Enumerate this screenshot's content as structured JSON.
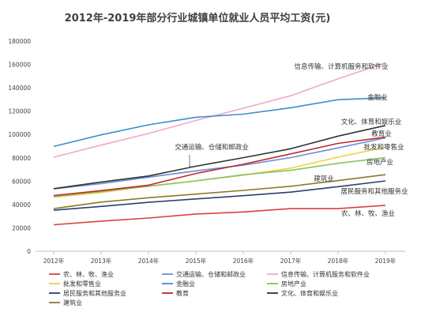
{
  "chart_data": {
    "type": "line",
    "title": "2012年-2019年部分行业城镇单位就业人员平均工资(元)",
    "xlabel": "",
    "ylabel": "",
    "categories": [
      "2012年",
      "2013年",
      "2014年",
      "2015年",
      "2016年",
      "2017年",
      "2018年",
      "2019年"
    ],
    "ylim": [
      0,
      180000
    ],
    "yticks": [
      "0",
      "20000",
      "40000",
      "60000",
      "80000",
      "100000",
      "120000",
      "140000",
      "160000",
      "180000"
    ],
    "grid": false,
    "legend_position": "bottom",
    "series": [
      {
        "name": "农、林、牧、渔业",
        "color": "#d94040",
        "values": [
          22700,
          25800,
          28400,
          31900,
          33600,
          36500,
          36500,
          39300
        ]
      },
      {
        "name": "交通运输、仓储和邮政业",
        "color": "#6a8fd6",
        "values": [
          53400,
          57900,
          63400,
          68800,
          73700,
          80200,
          88500,
          97100
        ]
      },
      {
        "name": "信息传输、计算机服务和软件业",
        "color": "#f2a8c4",
        "values": [
          80500,
          90900,
          100800,
          112000,
          122500,
          133200,
          147700,
          161400
        ]
      },
      {
        "name": "批发和零售业",
        "color": "#f0d040",
        "values": [
          46300,
          50300,
          55800,
          60300,
          65100,
          71200,
          80600,
          89000
        ]
      },
      {
        "name": "金融业",
        "color": "#3a8fc8",
        "values": [
          89700,
          99700,
          108300,
          114800,
          117400,
          122900,
          129800,
          131400
        ]
      },
      {
        "name": "房地产业",
        "color": "#8cc060",
        "values": [
          46800,
          51000,
          55600,
          60200,
          65500,
          69300,
          75300,
          80100
        ]
      },
      {
        "name": "居民服务和其他服务业",
        "color": "#2d3e73",
        "values": [
          35100,
          38400,
          41900,
          44800,
          47600,
          50600,
          55300,
          60200
        ]
      },
      {
        "name": "教育",
        "color": "#c02828",
        "values": [
          47700,
          51900,
          56600,
          66600,
          74500,
          83400,
          92400,
          97700
        ]
      },
      {
        "name": "文化、体育和娱乐业",
        "color": "#333333",
        "values": [
          53600,
          59300,
          64400,
          72800,
          80100,
          87800,
          98600,
          107700
        ]
      },
      {
        "name": "建筑业",
        "color": "#8a7a2a",
        "values": [
          36500,
          42100,
          45800,
          48900,
          52100,
          55600,
          60500,
          65600
        ]
      }
    ],
    "annotations": [
      {
        "text": "信息传输、计算机服务和软件业",
        "series": 2
      },
      {
        "text": "金融业",
        "series": 4
      },
      {
        "text": "文化、体育和娱乐业",
        "series": 8
      },
      {
        "text": "教育业",
        "series": 7
      },
      {
        "text": "批发和零售业",
        "series": 3
      },
      {
        "text": "房地产业",
        "series": 5
      },
      {
        "text": "交通运输、仓储和邮政业",
        "series": 1
      },
      {
        "text": "建筑业",
        "series": 9
      },
      {
        "text": "居民服务和其他服务业",
        "series": 6
      },
      {
        "text": "农、林、牧、渔业",
        "series": 0
      }
    ]
  }
}
